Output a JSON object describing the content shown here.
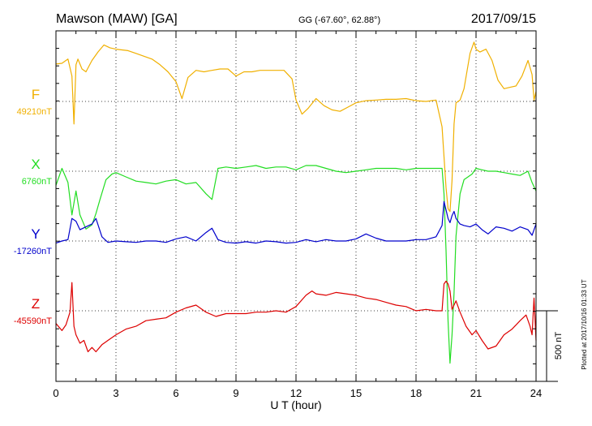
{
  "header": {
    "station": "Mawson (MAW)  [GA]",
    "coords": "GG (-67.60°,  62.88°)",
    "date": "2017/09/15"
  },
  "footer": {
    "plotted": "Plotted at 2017/10/16 01:33 UT"
  },
  "chart_data": {
    "type": "line",
    "xlabel": "U T (hour)",
    "xlim": [
      0,
      24
    ],
    "xticks": [
      "0",
      "3",
      "6",
      "9",
      "12",
      "15",
      "18",
      "21",
      "24"
    ],
    "grid": true,
    "scale_bar": {
      "label": "500 nT",
      "value_nT": 500
    },
    "series": [
      {
        "name": "F",
        "baseline_label": "49210nT",
        "baseline_nT": 49210,
        "color": "#f0b000",
        "x": [
          0,
          0.3,
          0.6,
          0.8,
          0.9,
          1.0,
          1.1,
          1.3,
          1.5,
          1.8,
          2.1,
          2.4,
          2.7,
          3.0,
          3.3,
          3.6,
          4.0,
          4.4,
          4.8,
          5.2,
          5.6,
          6.0,
          6.3,
          6.6,
          7.0,
          7.4,
          7.8,
          8.2,
          8.6,
          9.0,
          9.4,
          9.8,
          10.2,
          10.6,
          11.0,
          11.4,
          11.8,
          12.0,
          12.3,
          12.6,
          13.0,
          13.4,
          13.8,
          14.2,
          14.6,
          15.0,
          15.5,
          16.0,
          16.5,
          17.0,
          17.5,
          18.0,
          18.5,
          19.0,
          19.3,
          19.5,
          19.6,
          19.7,
          19.8,
          19.9,
          20.0,
          20.2,
          20.4,
          20.7,
          20.9,
          21.0,
          21.2,
          21.5,
          21.8,
          22.1,
          22.4,
          22.7,
          23.0,
          23.3,
          23.6,
          23.8,
          23.9,
          24.0
        ],
        "y": [
          49475,
          49480,
          49510,
          49390,
          49050,
          49470,
          49510,
          49440,
          49420,
          49500,
          49560,
          49610,
          49590,
          49580,
          49575,
          49570,
          49550,
          49530,
          49510,
          49470,
          49420,
          49350,
          49230,
          49380,
          49430,
          49420,
          49430,
          49440,
          49440,
          49390,
          49420,
          49420,
          49430,
          49430,
          49430,
          49430,
          49370,
          49220,
          49120,
          49160,
          49230,
          49180,
          49150,
          49140,
          49170,
          49200,
          49215,
          49220,
          49225,
          49225,
          49230,
          49215,
          49210,
          49220,
          49030,
          48600,
          48450,
          48430,
          48650,
          49050,
          49200,
          49220,
          49300,
          49550,
          49630,
          49580,
          49560,
          49580,
          49500,
          49360,
          49300,
          49310,
          49320,
          49390,
          49500,
          49400,
          49220,
          49280
        ]
      },
      {
        "name": "X",
        "baseline_label": "6760nT",
        "baseline_nT": 6760,
        "color": "#22dd22",
        "x": [
          0,
          0.3,
          0.6,
          0.8,
          1.0,
          1.2,
          1.5,
          1.8,
          2.0,
          2.2,
          2.5,
          2.8,
          3.0,
          3.5,
          4.0,
          4.5,
          5.0,
          5.5,
          6.0,
          6.5,
          7.0,
          7.5,
          7.8,
          8.1,
          8.5,
          9.0,
          9.5,
          10.0,
          10.5,
          11.0,
          11.5,
          12.0,
          12.5,
          13.0,
          13.5,
          14.0,
          14.5,
          15.0,
          15.5,
          16.0,
          16.5,
          17.0,
          17.5,
          18.0,
          18.5,
          19.0,
          19.3,
          19.4,
          19.5,
          19.6,
          19.7,
          19.8,
          19.9,
          20.0,
          20.2,
          20.4,
          20.6,
          20.8,
          21.0,
          21.3,
          21.6,
          22.0,
          22.4,
          22.8,
          23.2,
          23.6,
          23.8,
          24.0
        ],
        "y": [
          6660,
          6780,
          6680,
          6450,
          6620,
          6450,
          6350,
          6380,
          6460,
          6560,
          6700,
          6740,
          6750,
          6720,
          6690,
          6680,
          6670,
          6690,
          6700,
          6670,
          6680,
          6600,
          6560,
          6780,
          6790,
          6780,
          6790,
          6800,
          6780,
          6790,
          6790,
          6770,
          6800,
          6800,
          6780,
          6760,
          6750,
          6760,
          6770,
          6780,
          6780,
          6780,
          6770,
          6780,
          6780,
          6780,
          6780,
          6600,
          6200,
          5700,
          5400,
          5600,
          5900,
          6300,
          6600,
          6700,
          6720,
          6740,
          6780,
          6770,
          6760,
          6760,
          6750,
          6740,
          6730,
          6760,
          6680,
          6620
        ]
      },
      {
        "name": "Y",
        "baseline_label": "-17260nT",
        "baseline_nT": -17260,
        "color": "#0000cc",
        "x": [
          0,
          0.3,
          0.6,
          0.8,
          1.0,
          1.2,
          1.5,
          1.8,
          2.0,
          2.3,
          2.6,
          3.0,
          3.5,
          4.0,
          4.5,
          5.0,
          5.5,
          6.0,
          6.5,
          7.0,
          7.5,
          7.8,
          8.1,
          8.5,
          9.0,
          9.5,
          10.0,
          10.5,
          11.0,
          11.5,
          12.0,
          12.5,
          13.0,
          13.5,
          14.0,
          14.5,
          15.0,
          15.5,
          16.0,
          16.5,
          17.0,
          17.5,
          18.0,
          18.5,
          19.0,
          19.3,
          19.4,
          19.5,
          19.6,
          19.7,
          19.8,
          19.9,
          20.0,
          20.2,
          20.4,
          20.7,
          21.0,
          21.3,
          21.6,
          22.0,
          22.4,
          22.8,
          23.2,
          23.6,
          23.8,
          24.0
        ],
        "y": [
          -17275,
          -17260,
          -17250,
          -17100,
          -17120,
          -17180,
          -17160,
          -17140,
          -17100,
          -17230,
          -17270,
          -17260,
          -17265,
          -17270,
          -17260,
          -17260,
          -17270,
          -17245,
          -17230,
          -17260,
          -17200,
          -17170,
          -17250,
          -17270,
          -17275,
          -17265,
          -17275,
          -17260,
          -17265,
          -17275,
          -17270,
          -17250,
          -17265,
          -17250,
          -17260,
          -17260,
          -17245,
          -17210,
          -17240,
          -17260,
          -17260,
          -17260,
          -17250,
          -17250,
          -17230,
          -17150,
          -16980,
          -17040,
          -17100,
          -17130,
          -17080,
          -17050,
          -17100,
          -17140,
          -17150,
          -17160,
          -17140,
          -17180,
          -17210,
          -17160,
          -17170,
          -17190,
          -17160,
          -17180,
          -17220,
          -17140
        ]
      },
      {
        "name": "Z",
        "baseline_label": "-45590nT",
        "baseline_nT": -45590,
        "color": "#dd0000",
        "x": [
          0,
          0.3,
          0.5,
          0.7,
          0.8,
          0.9,
          1.0,
          1.2,
          1.4,
          1.6,
          1.8,
          2.0,
          2.3,
          2.6,
          3.0,
          3.5,
          4.0,
          4.5,
          5.0,
          5.5,
          6.0,
          6.5,
          7.0,
          7.5,
          8.0,
          8.5,
          9.0,
          9.5,
          10.0,
          10.5,
          11.0,
          11.5,
          12.0,
          12.5,
          12.8,
          13.0,
          13.5,
          14.0,
          14.5,
          15.0,
          15.5,
          16.0,
          16.5,
          17.0,
          17.5,
          18.0,
          18.5,
          19.0,
          19.3,
          19.4,
          19.5,
          19.6,
          19.7,
          19.8,
          20.0,
          20.2,
          20.5,
          20.8,
          21.0,
          21.3,
          21.6,
          22.0,
          22.4,
          22.8,
          23.2,
          23.5,
          23.7,
          23.8,
          23.9,
          24.0
        ],
        "y": [
          -45680,
          -45730,
          -45690,
          -45600,
          -45390,
          -45700,
          -45760,
          -45820,
          -45800,
          -45880,
          -45850,
          -45880,
          -45830,
          -45800,
          -45760,
          -45720,
          -45700,
          -45660,
          -45650,
          -45640,
          -45600,
          -45570,
          -45550,
          -45600,
          -45630,
          -45610,
          -45610,
          -45610,
          -45600,
          -45600,
          -45590,
          -45600,
          -45560,
          -45480,
          -45450,
          -45470,
          -45480,
          -45460,
          -45470,
          -45480,
          -45500,
          -45510,
          -45530,
          -45550,
          -45560,
          -45590,
          -45580,
          -45590,
          -45590,
          -45400,
          -45380,
          -45400,
          -45450,
          -45580,
          -45520,
          -45600,
          -45700,
          -45760,
          -45730,
          -45800,
          -45860,
          -45840,
          -45760,
          -45720,
          -45660,
          -45620,
          -45700,
          -45760,
          -45500,
          -45800
        ]
      }
    ]
  }
}
